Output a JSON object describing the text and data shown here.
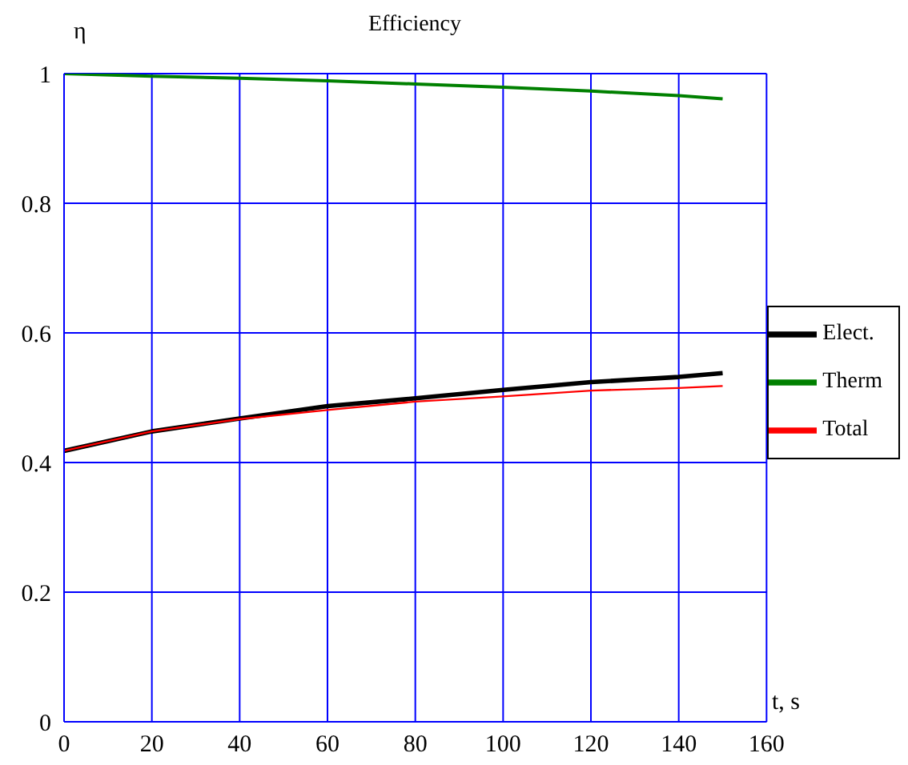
{
  "chart_data": {
    "type": "line",
    "title": "Efficiency",
    "xlabel": "t, s",
    "ylabel": "η",
    "x": [
      0,
      20,
      40,
      60,
      80,
      100,
      120,
      140,
      150
    ],
    "series": [
      {
        "name": "Elect.",
        "color": "#000000",
        "values": [
          0.418,
          0.448,
          0.468,
          0.487,
          0.499,
          0.512,
          0.524,
          0.532,
          0.538
        ]
      },
      {
        "name": "Therm",
        "color": "#008000",
        "values": [
          1.0,
          0.996,
          0.993,
          0.989,
          0.984,
          0.979,
          0.973,
          0.966,
          0.961
        ]
      },
      {
        "name": "Total",
        "color": "#ff0000",
        "values": [
          0.418,
          0.448,
          0.467,
          0.481,
          0.494,
          0.502,
          0.511,
          0.515,
          0.518
        ]
      }
    ],
    "xlim": [
      0,
      160
    ],
    "xticks": [
      0,
      20,
      40,
      60,
      80,
      100,
      120,
      140,
      160
    ],
    "ylim": [
      0,
      1
    ],
    "yticks": [
      0,
      0.2,
      0.4,
      0.6,
      0.8,
      1
    ],
    "grid": true,
    "legend": "right",
    "marker": "none",
    "line_style": "solid"
  }
}
